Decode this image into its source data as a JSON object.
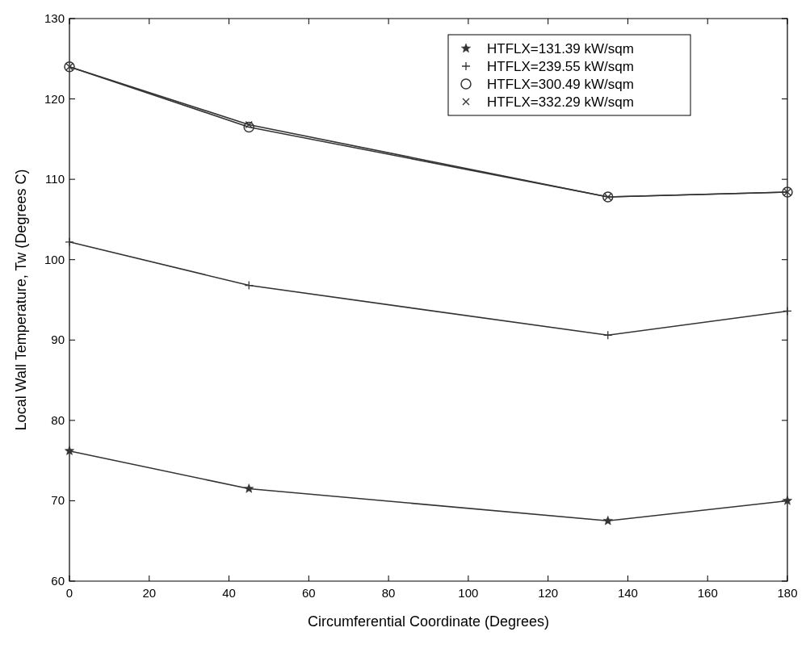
{
  "chart_data": {
    "type": "line",
    "xlabel": "Circumferential Coordinate (Degrees)",
    "ylabel": "Local Wall Temperature, Tw (Degrees C)",
    "x": [
      0,
      45,
      135,
      180
    ],
    "xlim": [
      0,
      180
    ],
    "xticks": [
      0,
      20,
      40,
      60,
      80,
      100,
      120,
      140,
      160,
      180
    ],
    "ylim": [
      60,
      130
    ],
    "yticks": [
      60,
      70,
      80,
      90,
      100,
      110,
      120,
      130
    ],
    "legend": "top right",
    "line_style": "solid",
    "series": [
      {
        "name": "HTFLX=131.39 kW/sqm",
        "color": "#333333",
        "marker": "star",
        "values": [
          76.2,
          71.5,
          67.5,
          70.0
        ]
      },
      {
        "name": "HTFLX=239.55 kW/sqm",
        "color": "#333333",
        "marker": "cross",
        "values": [
          102.2,
          96.8,
          90.6,
          93.6
        ]
      },
      {
        "name": "HTFLX=300.49 kW/sqm",
        "color": "#333333",
        "marker": "circle",
        "values": [
          124.0,
          116.5,
          107.8,
          108.4
        ]
      },
      {
        "name": "HTFLX=332.29 kW/sqm",
        "color": "#333333",
        "marker": "x",
        "values": [
          124.0,
          116.8,
          107.8,
          108.4
        ]
      }
    ]
  }
}
